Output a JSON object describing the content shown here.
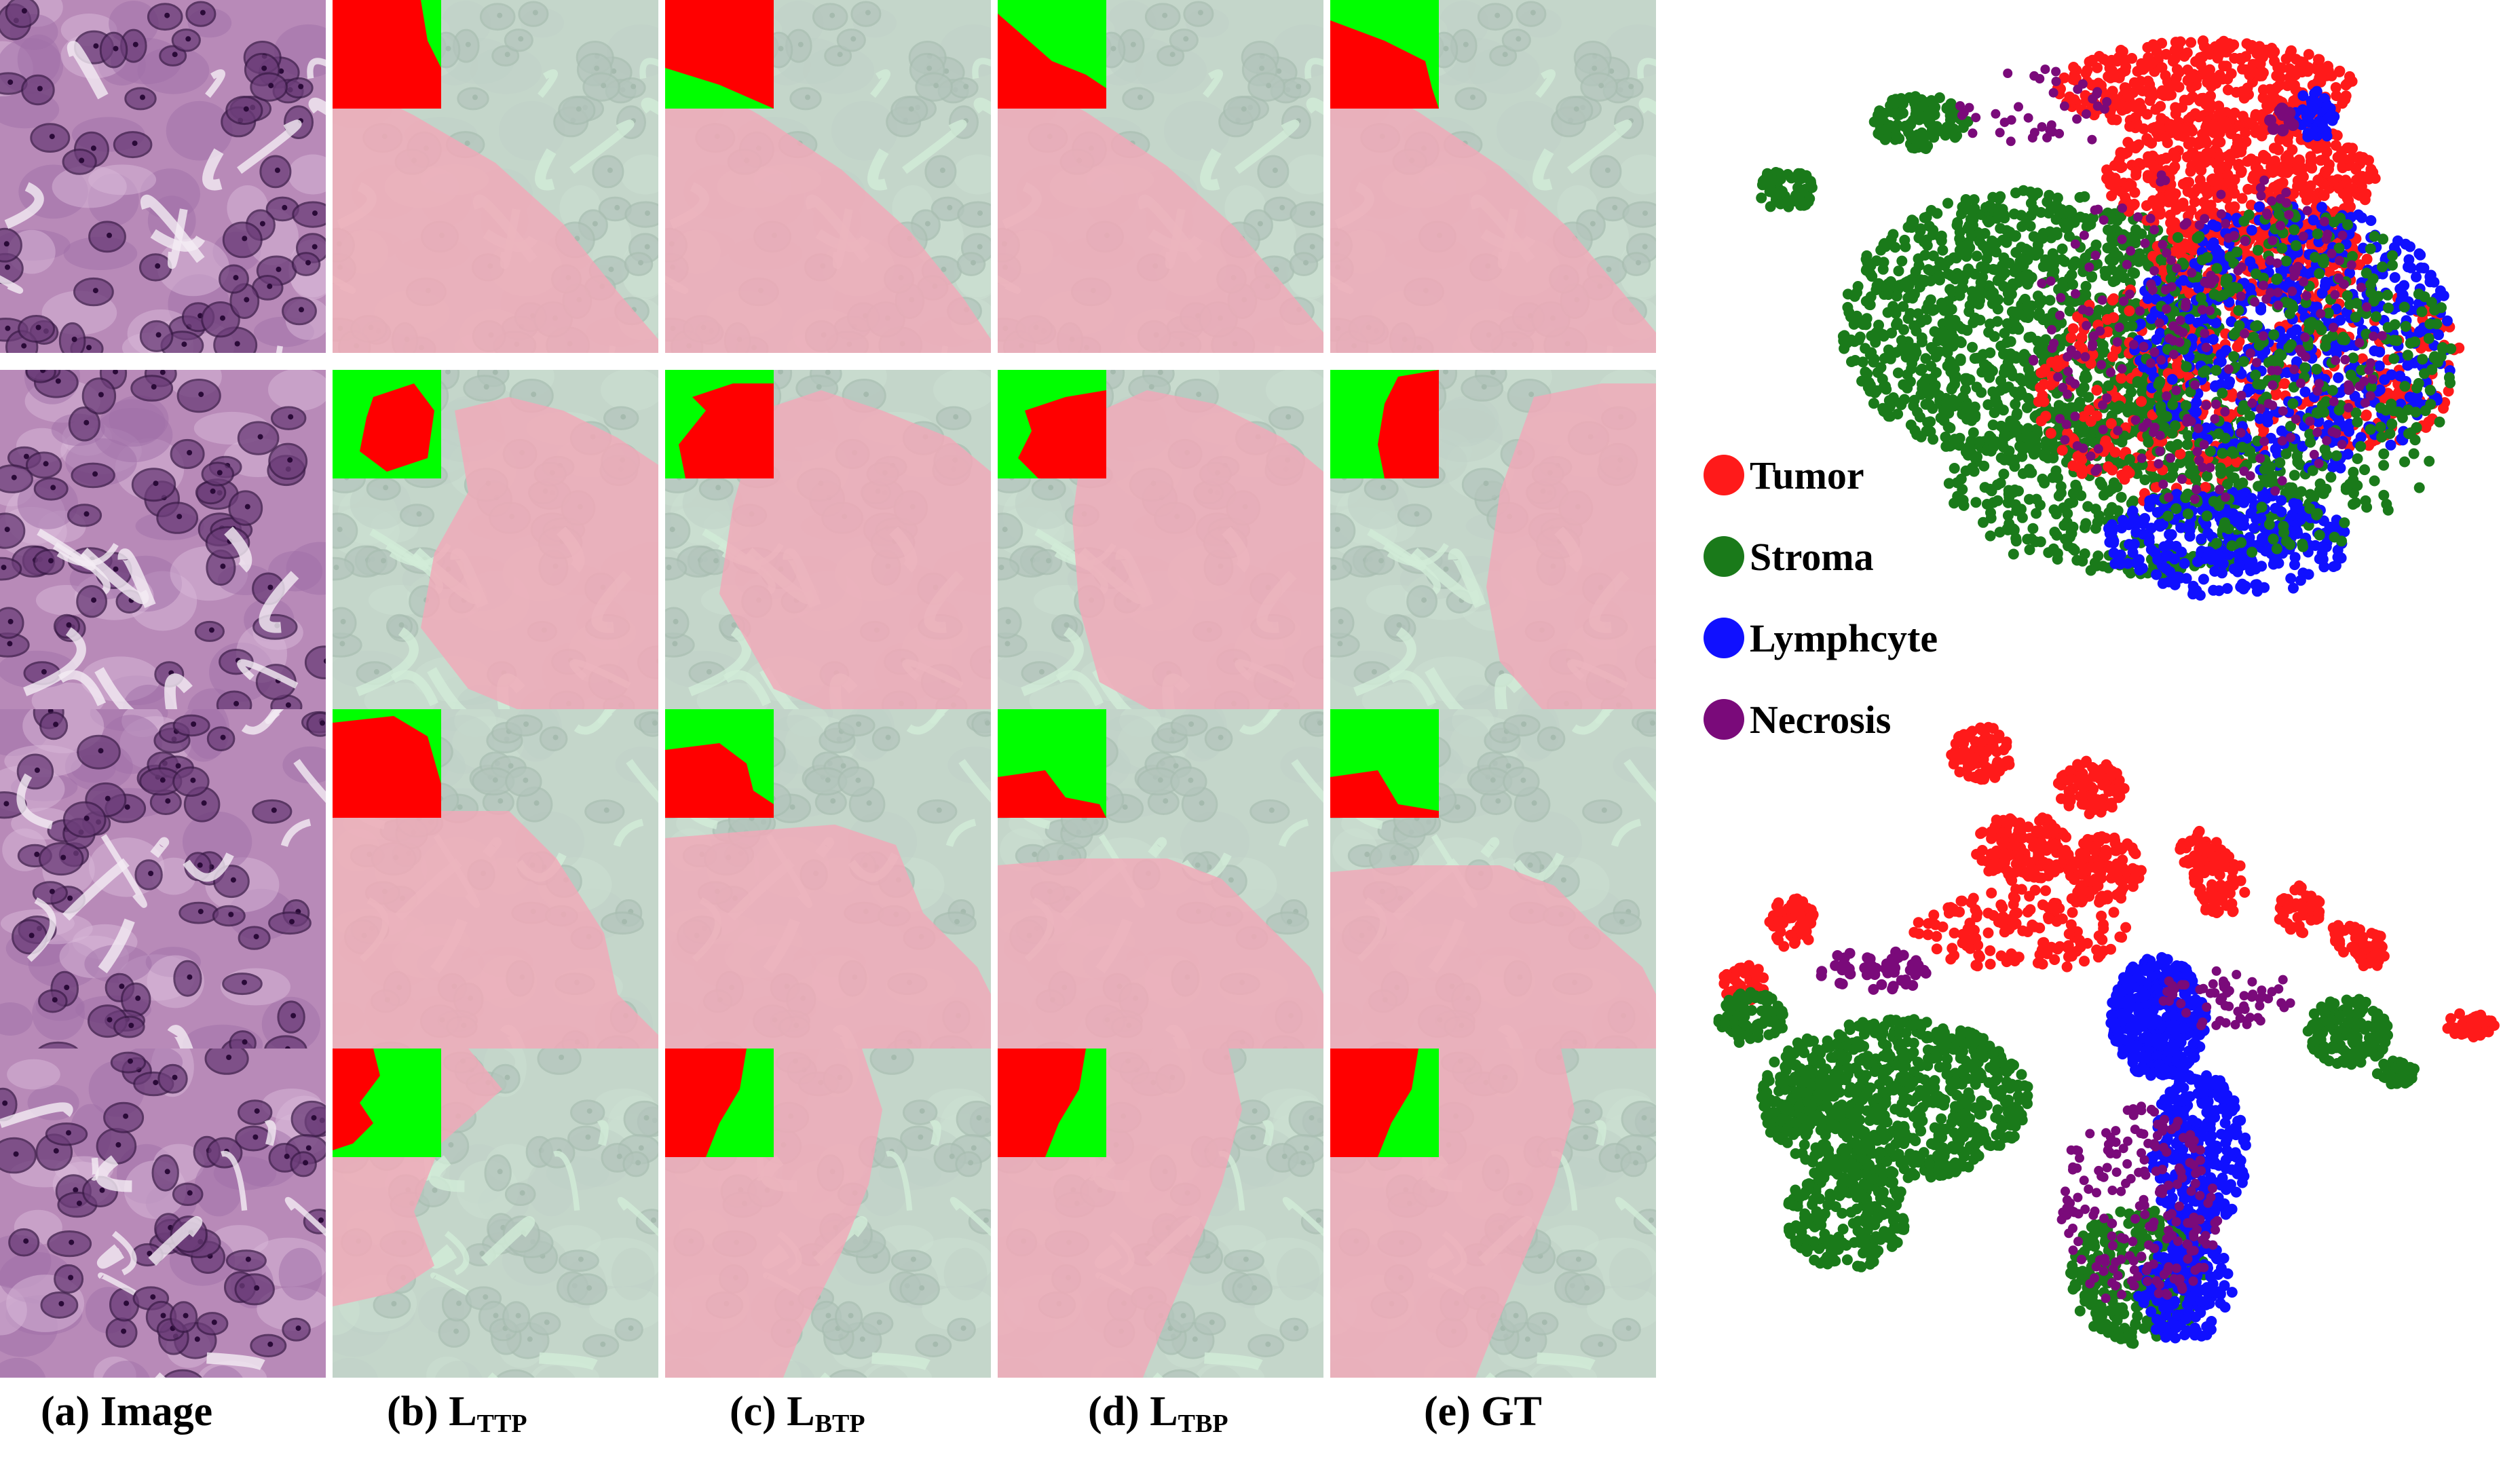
{
  "columns": [
    {
      "key": "image",
      "caption_prefix": "(a) Image",
      "caption_sub": "",
      "overlay": false
    },
    {
      "key": "ttp",
      "caption_prefix": "(b) L",
      "caption_sub": "TTP",
      "overlay": true
    },
    {
      "key": "btp",
      "caption_prefix": "(c) L",
      "caption_sub": "BTP",
      "overlay": true
    },
    {
      "key": "tbp",
      "caption_prefix": "(d) L",
      "caption_sub": "TBP",
      "overlay": true
    },
    {
      "key": "gt",
      "caption_prefix": "(e) GT",
      "caption_sub": "",
      "overlay": true
    }
  ],
  "rows": 4,
  "colors": {
    "tissue": "#b88ab8",
    "nucleus": "#6a3c78",
    "tumor_mask": "#ff0000",
    "stroma_mask": "#00ff00",
    "tumor_overlay": "#f2a8b8",
    "stroma_overlay": "#c8ecd0"
  },
  "legend": [
    {
      "label": "Tumor",
      "color": "#ff1a1a"
    },
    {
      "label": "Stroma",
      "color": "#1a7a1a"
    },
    {
      "label": "Lymphcyte",
      "color": "#1010ff"
    },
    {
      "label": "Necrosis",
      "color": "#7a0a7a"
    }
  ]
}
